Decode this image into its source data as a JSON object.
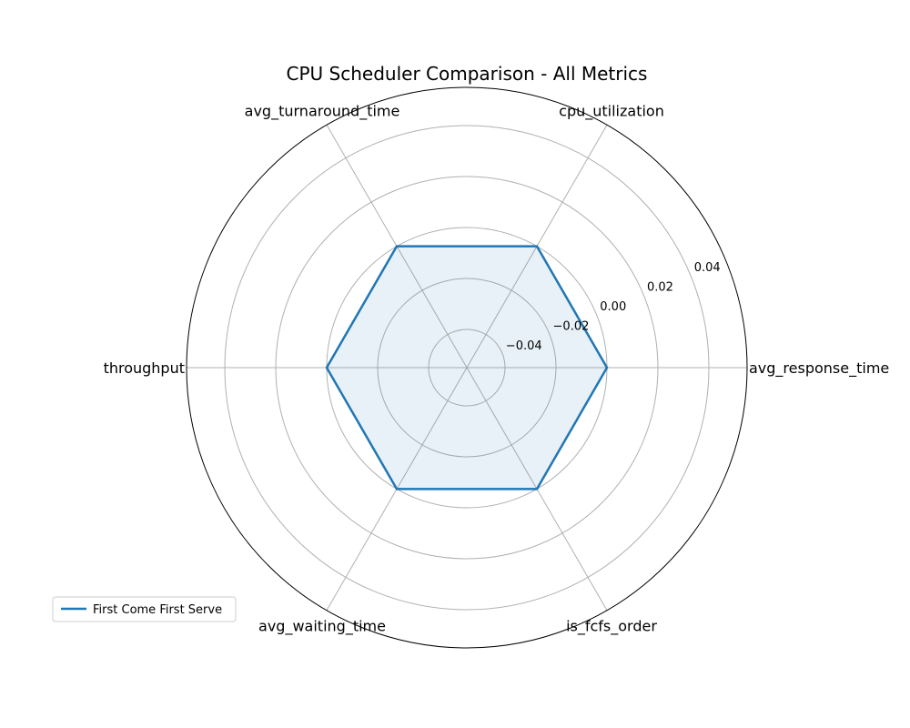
{
  "chart_data": {
    "type": "radar",
    "title": "CPU Scheduler Comparison - All Metrics",
    "axes": [
      "avg_response_time",
      "cpu_utilization",
      "avg_turnaround_time",
      "throughput",
      "avg_waiting_time",
      "is_fcfs_order"
    ],
    "radial_range": [
      -0.055,
      0.055
    ],
    "radial_ticks": [
      -0.04,
      -0.02,
      0.0,
      0.02,
      0.04
    ],
    "radial_tick_labels": [
      "−0.04",
      "−0.02",
      "0.00",
      "0.02",
      "0.04"
    ],
    "grid": true,
    "legend_position": "lower-left",
    "series": [
      {
        "name": "First Come First Serve",
        "color": "#1f77b4",
        "values": [
          0,
          0,
          0,
          0,
          0,
          0
        ]
      }
    ]
  }
}
